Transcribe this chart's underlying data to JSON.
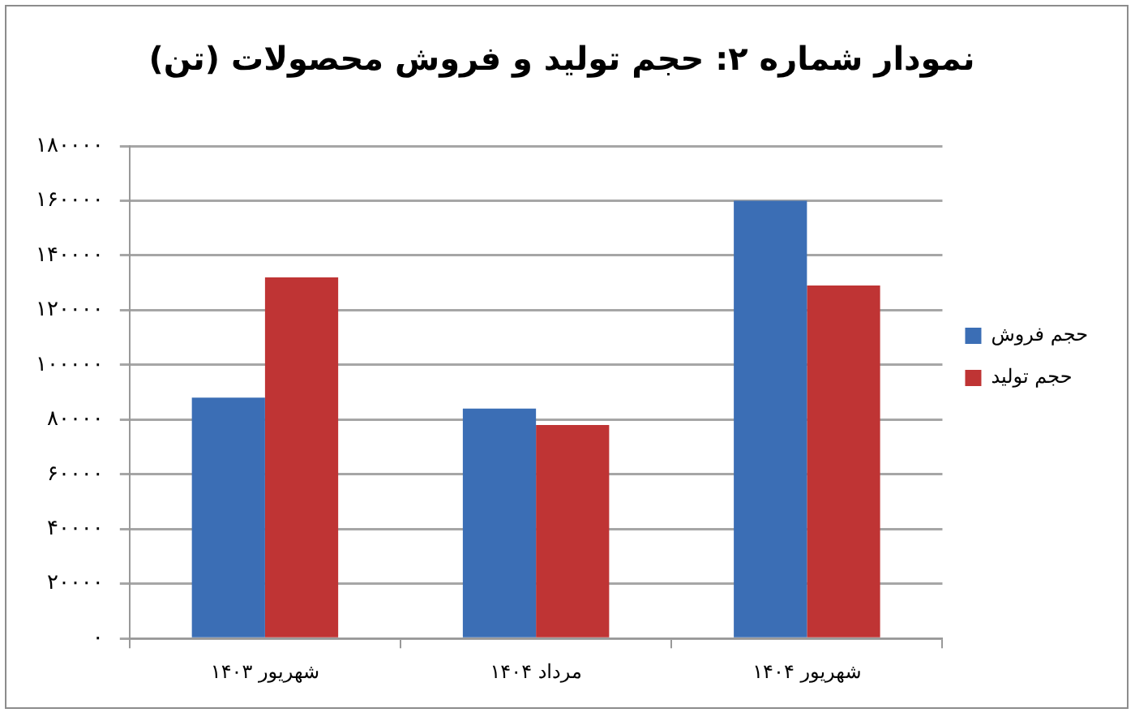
{
  "chart_data": {
    "type": "bar",
    "title": "نمودار شماره ۲: حجم تولید و فروش محصولات (تن)",
    "categories": [
      "شهریور ۱۴۰۳",
      "مرداد ۱۴۰۴",
      "شهریور ۱۴۰۴"
    ],
    "series": [
      {
        "name": "حجم فروش",
        "color": "#3b6eb5",
        "values": [
          88000,
          84000,
          160000
        ]
      },
      {
        "name": "حجم تولید",
        "color": "#bf3434",
        "values": [
          132000,
          78000,
          129000
        ]
      }
    ],
    "ylim": [
      0,
      180000
    ],
    "yticks": [
      {
        "value": 0,
        "label": "۰"
      },
      {
        "value": 20000,
        "label": "۲۰۰۰۰"
      },
      {
        "value": 40000,
        "label": "۴۰۰۰۰"
      },
      {
        "value": 60000,
        "label": "۶۰۰۰۰"
      },
      {
        "value": 80000,
        "label": "۸۰۰۰۰"
      },
      {
        "value": 100000,
        "label": "۱۰۰۰۰۰"
      },
      {
        "value": 120000,
        "label": "۱۲۰۰۰۰"
      },
      {
        "value": 140000,
        "label": "۱۴۰۰۰۰"
      },
      {
        "value": 160000,
        "label": "۱۶۰۰۰۰"
      },
      {
        "value": 180000,
        "label": "۱۸۰۰۰۰"
      }
    ],
    "grid": "y",
    "legend": "right"
  }
}
